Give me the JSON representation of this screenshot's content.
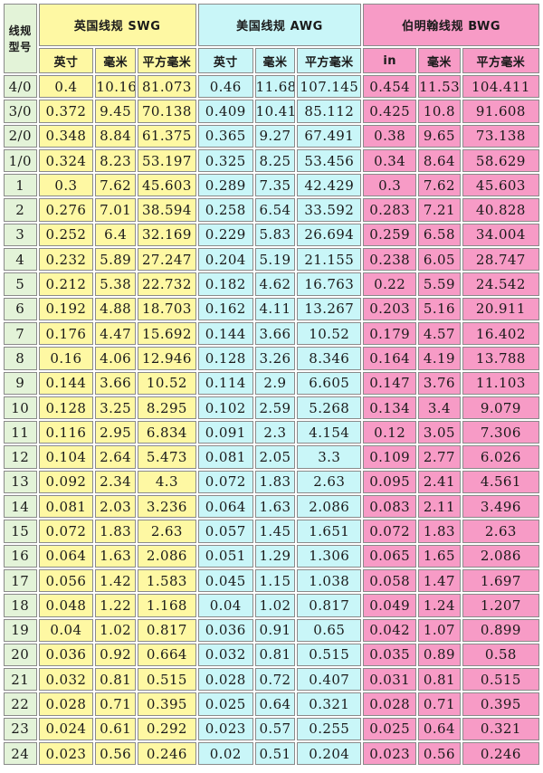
{
  "colors": {
    "gauge_bg": "#e3f3d8",
    "swg_bg": "#fef8a3",
    "awg_bg": "#c9f6f8",
    "bwg_bg": "#f79bc6"
  },
  "header": {
    "corner_line1": "线规",
    "corner_line2": "型号",
    "swg_title": "英国线规 SWG",
    "awg_title": "美国线规 AWG",
    "bwg_title": "伯明翰线规 BWG"
  },
  "units": {
    "swg": [
      "英寸",
      "毫米",
      "平方毫米"
    ],
    "awg": [
      "英寸",
      "毫米",
      "平方毫米"
    ],
    "bwg": [
      "in",
      "毫米",
      "平方毫米"
    ]
  },
  "rows": [
    [
      "4/0",
      "0.4",
      "10.16",
      "81.073",
      "0.46",
      "11.68",
      "107.145",
      "0.454",
      "11.53",
      "104.411"
    ],
    [
      "3/0",
      "0.372",
      "9.45",
      "70.138",
      "0.409",
      "10.41",
      "85.112",
      "0.425",
      "10.8",
      "91.608"
    ],
    [
      "2/0",
      "0.348",
      "8.84",
      "61.375",
      "0.365",
      "9.27",
      "67.491",
      "0.38",
      "9.65",
      "73.138"
    ],
    [
      "1/0",
      "0.324",
      "8.23",
      "53.197",
      "0.325",
      "8.25",
      "53.456",
      "0.34",
      "8.64",
      "58.629"
    ],
    [
      "1",
      "0.3",
      "7.62",
      "45.603",
      "0.289",
      "7.35",
      "42.429",
      "0.3",
      "7.62",
      "45.603"
    ],
    [
      "2",
      "0.276",
      "7.01",
      "38.594",
      "0.258",
      "6.54",
      "33.592",
      "0.283",
      "7.21",
      "40.828"
    ],
    [
      "3",
      "0.252",
      "6.4",
      "32.169",
      "0.229",
      "5.83",
      "26.694",
      "0.259",
      "6.58",
      "34.004"
    ],
    [
      "4",
      "0.232",
      "5.89",
      "27.247",
      "0.204",
      "5.19",
      "21.155",
      "0.238",
      "6.05",
      "28.747"
    ],
    [
      "5",
      "0.212",
      "5.38",
      "22.732",
      "0.182",
      "4.62",
      "16.763",
      "0.22",
      "5.59",
      "24.542"
    ],
    [
      "6",
      "0.192",
      "4.88",
      "18.703",
      "0.162",
      "4.11",
      "13.267",
      "0.203",
      "5.16",
      "20.911"
    ],
    [
      "7",
      "0.176",
      "4.47",
      "15.692",
      "0.144",
      "3.66",
      "10.52",
      "0.179",
      "4.57",
      "16.402"
    ],
    [
      "8",
      "0.16",
      "4.06",
      "12.946",
      "0.128",
      "3.26",
      "8.346",
      "0.164",
      "4.19",
      "13.788"
    ],
    [
      "9",
      "0.144",
      "3.66",
      "10.52",
      "0.114",
      "2.9",
      "6.605",
      "0.147",
      "3.76",
      "11.103"
    ],
    [
      "10",
      "0.128",
      "3.25",
      "8.295",
      "0.102",
      "2.59",
      "5.268",
      "0.134",
      "3.4",
      "9.079"
    ],
    [
      "11",
      "0.116",
      "2.95",
      "6.834",
      "0.091",
      "2.3",
      "4.154",
      "0.12",
      "3.05",
      "7.306"
    ],
    [
      "12",
      "0.104",
      "2.64",
      "5.473",
      "0.081",
      "2.05",
      "3.3",
      "0.109",
      "2.77",
      "6.026"
    ],
    [
      "13",
      "0.092",
      "2.34",
      "4.3",
      "0.072",
      "1.83",
      "2.63",
      "0.095",
      "2.41",
      "4.561"
    ],
    [
      "14",
      "0.081",
      "2.03",
      "3.236",
      "0.064",
      "1.63",
      "2.086",
      "0.083",
      "2.11",
      "3.496"
    ],
    [
      "15",
      "0.072",
      "1.83",
      "2.63",
      "0.057",
      "1.45",
      "1.651",
      "0.072",
      "1.83",
      "2.63"
    ],
    [
      "16",
      "0.064",
      "1.63",
      "2.086",
      "0.051",
      "1.29",
      "1.306",
      "0.065",
      "1.65",
      "2.086"
    ],
    [
      "17",
      "0.056",
      "1.42",
      "1.583",
      "0.045",
      "1.15",
      "1.038",
      "0.058",
      "1.47",
      "1.697"
    ],
    [
      "18",
      "0.048",
      "1.22",
      "1.168",
      "0.04",
      "1.02",
      "0.817",
      "0.049",
      "1.24",
      "1.207"
    ],
    [
      "19",
      "0.04",
      "1.02",
      "0.817",
      "0.036",
      "0.91",
      "0.65",
      "0.042",
      "1.07",
      "0.899"
    ],
    [
      "20",
      "0.036",
      "0.92",
      "0.664",
      "0.032",
      "0.81",
      "0.515",
      "0.035",
      "0.89",
      "0.58"
    ],
    [
      "21",
      "0.032",
      "0.81",
      "0.515",
      "0.028",
      "0.72",
      "0.407",
      "0.031",
      "0.81",
      "0.515"
    ],
    [
      "22",
      "0.028",
      "0.71",
      "0.395",
      "0.025",
      "0.64",
      "0.321",
      "0.028",
      "0.71",
      "0.395"
    ],
    [
      "23",
      "0.024",
      "0.61",
      "0.292",
      "0.023",
      "0.57",
      "0.255",
      "0.025",
      "0.64",
      "0.321"
    ],
    [
      "24",
      "0.023",
      "0.56",
      "0.246",
      "0.02",
      "0.51",
      "0.204",
      "0.023",
      "0.56",
      "0.246"
    ]
  ]
}
